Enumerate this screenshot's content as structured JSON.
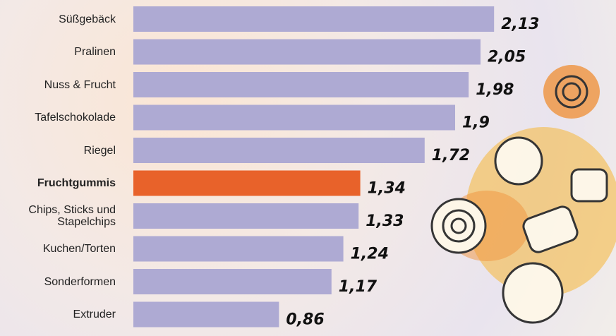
{
  "chart_data": {
    "type": "bar",
    "orientation": "horizontal",
    "categories": [
      "Süßgebäck",
      "Pralinen",
      "Nuss & Frucht",
      "Tafelschokolade",
      "Riegel",
      "Fruchtgummis",
      "Chips, Sticks und Stapelchips",
      "Kuchen/Torten",
      "Sonderformen",
      "Extruder"
    ],
    "values": [
      2.13,
      2.05,
      1.98,
      1.9,
      1.72,
      1.34,
      1.33,
      1.24,
      1.17,
      0.86
    ],
    "value_labels": [
      "2,13",
      "2,05",
      "1,98",
      "1,9",
      "1,72",
      "1,34",
      "1,33",
      "1,24",
      "1,17",
      "0,86"
    ],
    "color": "#aeaad3",
    "highlight_color": "#e8622a",
    "highlight_index": 5,
    "xlim": [
      0,
      2.85
    ]
  }
}
